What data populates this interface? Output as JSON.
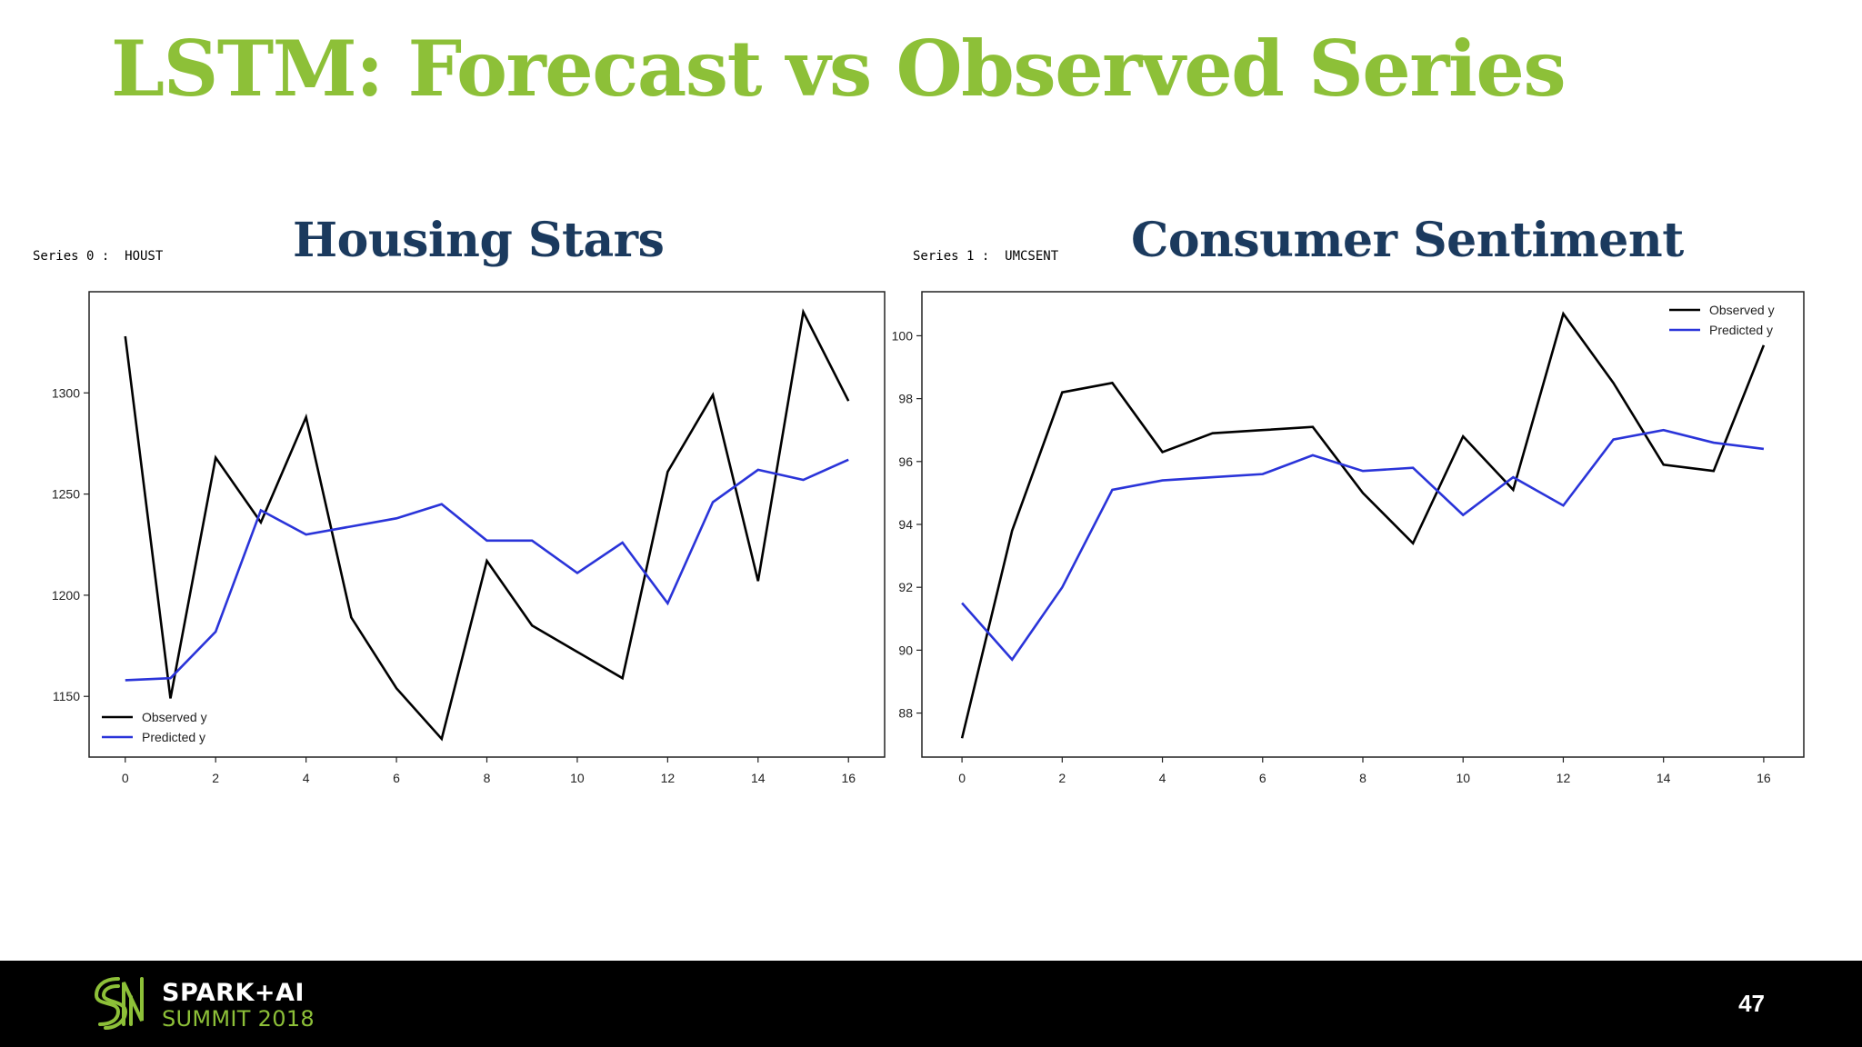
{
  "slide": {
    "title": "LSTM: Forecast vs Observed Series",
    "page_number": "47"
  },
  "footer": {
    "logo_line1": "SPARK+AI",
    "logo_line2": "SUMMIT 2018"
  },
  "colors": {
    "title_green": "#8dc038",
    "heading_navy": "#1b3a5e",
    "observed": "#000000",
    "predicted": "#2a34d9"
  },
  "chart_data": [
    {
      "type": "line",
      "heading": "Housing Stars",
      "series_label": "Series 0 :  HOUST",
      "x": [
        0,
        1,
        2,
        3,
        4,
        5,
        6,
        7,
        8,
        9,
        10,
        11,
        12,
        13,
        14,
        15,
        16
      ],
      "xticks": [
        0,
        2,
        4,
        6,
        8,
        10,
        12,
        14,
        16
      ],
      "yticks": [
        1150,
        1200,
        1250,
        1300
      ],
      "xlim": [
        -0.8,
        16.8
      ],
      "ylim": [
        1120,
        1350
      ],
      "legend_position": "lower-left",
      "series": [
        {
          "name": "Observed y",
          "color": "#000000",
          "values": [
            1328,
            1149,
            1268,
            1236,
            1288,
            1189,
            1154,
            1129,
            1217,
            1185,
            1172,
            1159,
            1261,
            1299,
            1207,
            1340,
            1296
          ]
        },
        {
          "name": "Predicted y",
          "color": "#2a34d9",
          "values": [
            1158,
            1159,
            1182,
            1242,
            1230,
            1234,
            1238,
            1245,
            1227,
            1227,
            1211,
            1226,
            1196,
            1246,
            1262,
            1257,
            1267
          ]
        }
      ]
    },
    {
      "type": "line",
      "heading": "Consumer Sentiment",
      "series_label": "Series 1 :  UMCSENT",
      "x": [
        0,
        1,
        2,
        3,
        4,
        5,
        6,
        7,
        8,
        9,
        10,
        11,
        12,
        13,
        14,
        15,
        16
      ],
      "xticks": [
        0,
        2,
        4,
        6,
        8,
        10,
        12,
        14,
        16
      ],
      "yticks": [
        88,
        90,
        92,
        94,
        96,
        98,
        100
      ],
      "xlim": [
        -0.8,
        16.8
      ],
      "ylim": [
        86.6,
        101.4
      ],
      "legend_position": "upper-right",
      "series": [
        {
          "name": "Observed y",
          "color": "#000000",
          "values": [
            87.2,
            93.8,
            98.2,
            98.5,
            96.3,
            96.9,
            97.0,
            97.1,
            95.0,
            93.4,
            96.8,
            95.1,
            100.7,
            98.5,
            95.9,
            95.7,
            99.7
          ]
        },
        {
          "name": "Predicted y",
          "color": "#2a34d9",
          "values": [
            91.5,
            89.7,
            92.0,
            95.1,
            95.4,
            95.5,
            95.6,
            96.2,
            95.7,
            95.8,
            94.3,
            95.5,
            94.6,
            96.7,
            97.0,
            96.6,
            96.4
          ]
        }
      ]
    }
  ]
}
